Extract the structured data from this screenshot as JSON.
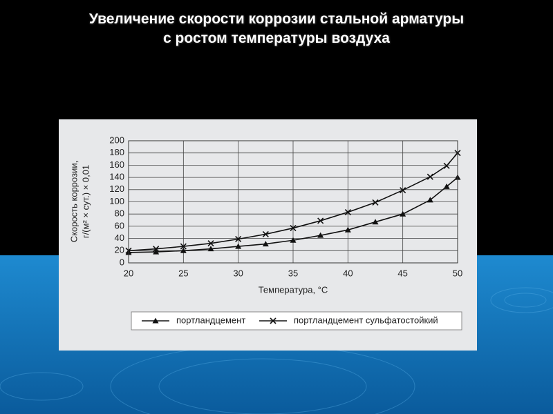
{
  "chart_data": {
    "type": "line",
    "title": [
      "Увеличение скорости коррозии стальной арматуры",
      "с ростом температуры воздуха"
    ],
    "xlabel": "Температура, °С",
    "ylabel": [
      "Скорость коррозии,",
      "г/(м² × сут.) × 0,01"
    ],
    "x": [
      20,
      22.5,
      25,
      27.5,
      30,
      32.5,
      35,
      37.5,
      40,
      42.5,
      45,
      47.5,
      49,
      50
    ],
    "series": [
      {
        "name": "портландцемент",
        "color": "#111111",
        "marker": "triangle",
        "values": [
          17,
          18,
          20,
          23,
          27,
          31,
          37,
          45,
          54,
          67,
          80,
          103,
          125,
          140
        ]
      },
      {
        "name": "портландцемент сульфатостойкий",
        "color": "#111111",
        "marker": "cross",
        "values": [
          20,
          23,
          27,
          32,
          39,
          47,
          57,
          69,
          83,
          99,
          119,
          141,
          159,
          180
        ]
      }
    ],
    "xlim": [
      20,
      50
    ],
    "xticks": [
      20,
      25,
      30,
      35,
      40,
      45,
      50
    ],
    "ylim": [
      0,
      200
    ],
    "yticks": [
      0,
      20,
      40,
      60,
      80,
      100,
      120,
      140,
      160,
      180,
      200
    ],
    "grid": true,
    "legend": "bottom"
  }
}
